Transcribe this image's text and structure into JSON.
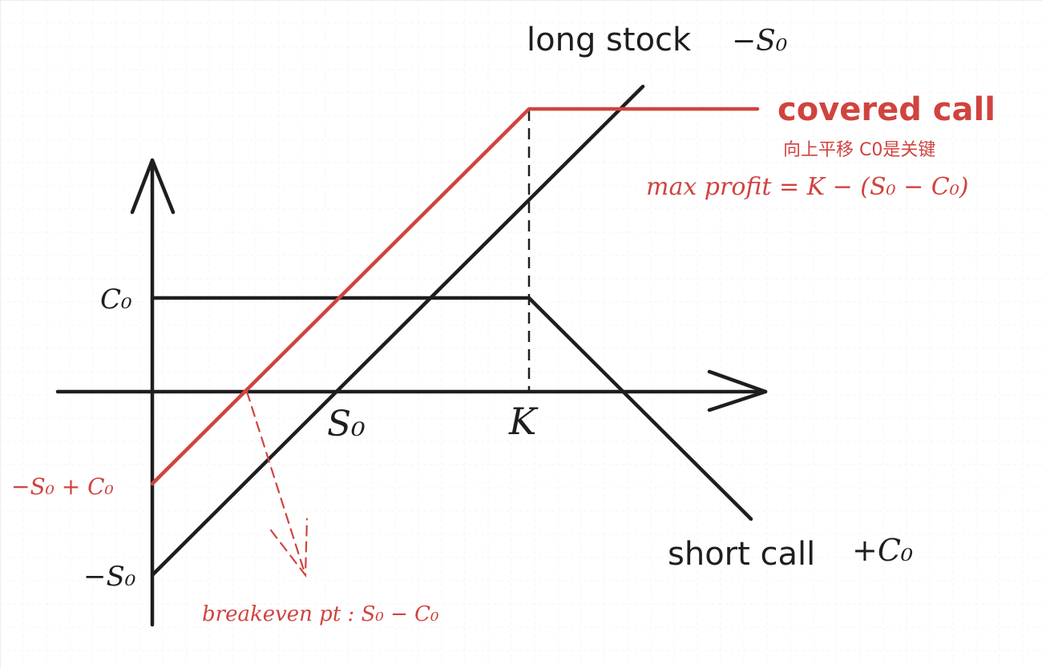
{
  "colors": {
    "black": "#1e1e1e",
    "red": "#d0433f",
    "grid": "#ececec"
  },
  "labels": {
    "long_stock_text": "long stock",
    "long_stock_math": "−S₀",
    "covered_call_text": "covered call",
    "covered_call_note": "向上平移 C0是关键",
    "max_profit": "max profit = K − (S₀ − C₀)",
    "short_call_text": "short call",
    "short_call_math": "+C₀",
    "breakeven": "breakeven pt : S₀ − C₀",
    "y_c0": "C₀",
    "y_neg_s0_plus_c0": "−S₀ + C₀",
    "y_neg_s0": "−S₀",
    "x_s0": "S₀",
    "x_k": "K"
  }
}
